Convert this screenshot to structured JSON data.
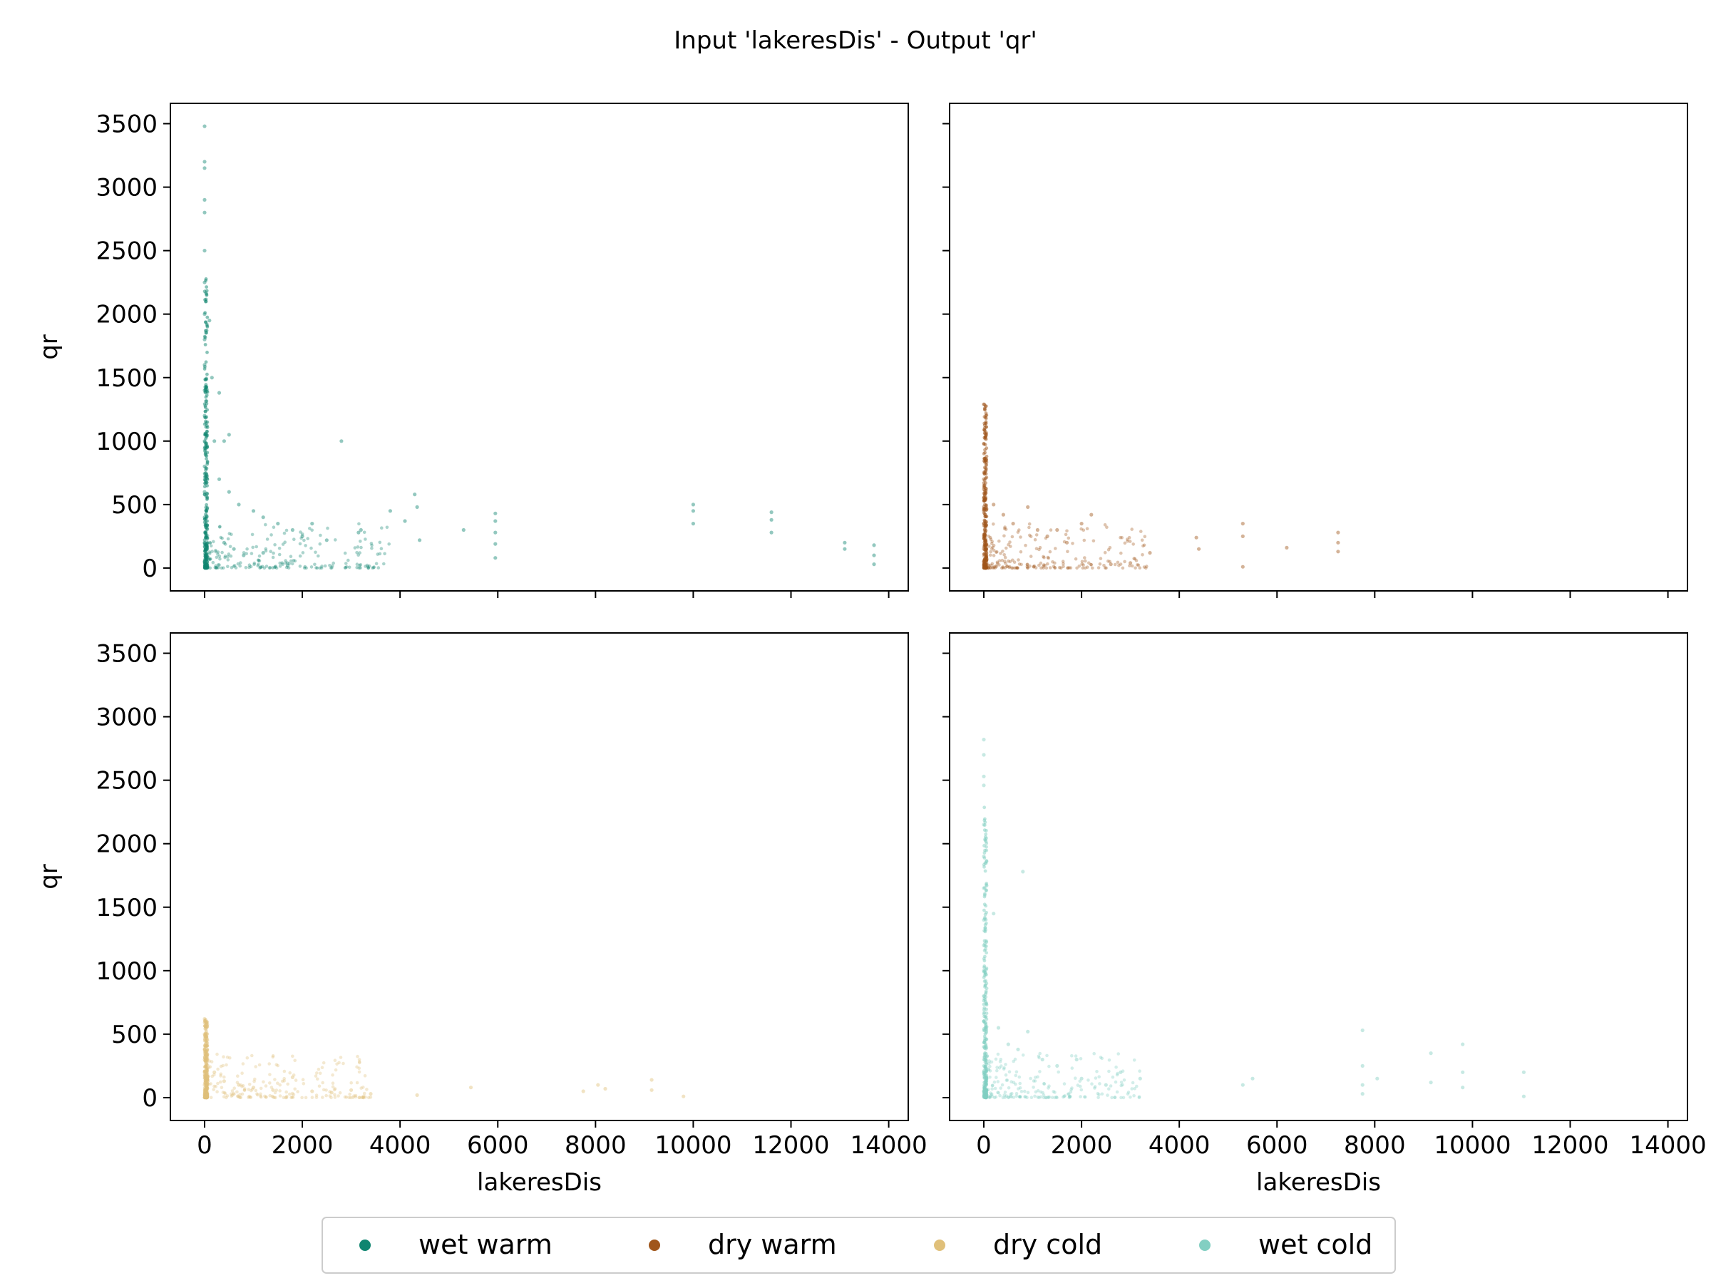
{
  "figure": {
    "title": "Input 'lakeresDis' - Output 'qr'"
  },
  "legend": {
    "items": [
      {
        "label": "wet warm",
        "color": "#0f8570"
      },
      {
        "label": "dry warm",
        "color": "#a0561b"
      },
      {
        "label": "dry cold",
        "color": "#e0c07a"
      },
      {
        "label": "wet cold",
        "color": "#82cfc2"
      }
    ]
  },
  "chart_data": [
    {
      "type": "scatter",
      "panel": "top-left",
      "series": [
        {
          "name": "wet warm",
          "color": "#0f8570"
        }
      ],
      "xlabel": "",
      "ylabel": "qr",
      "xlim": [
        -700,
        14400
      ],
      "ylim": [
        -180,
        3660
      ],
      "xticks": [
        0,
        2000,
        4000,
        6000,
        8000,
        10000,
        12000,
        14000
      ],
      "yticks": [
        0,
        500,
        1000,
        1500,
        2000,
        2500,
        3000,
        3500
      ],
      "show_xtick_labels": false,
      "show_ytick_labels": true,
      "points": [
        [
          0,
          3480
        ],
        [
          0,
          3200
        ],
        [
          0,
          3150
        ],
        [
          0,
          2900
        ],
        [
          0,
          2800
        ],
        [
          0,
          2500
        ],
        [
          0,
          2250
        ],
        [
          0,
          2000
        ],
        [
          0,
          1800
        ],
        [
          0,
          1600
        ],
        [
          0,
          1400
        ],
        [
          0,
          1200
        ],
        [
          0,
          1000
        ],
        [
          0,
          800
        ],
        [
          0,
          600
        ],
        [
          0,
          400
        ],
        [
          0,
          200
        ],
        [
          0,
          50
        ],
        [
          100,
          1950
        ],
        [
          150,
          1500
        ],
        [
          200,
          1000
        ],
        [
          300,
          1380
        ],
        [
          400,
          1000
        ],
        [
          500,
          1050
        ],
        [
          300,
          700
        ],
        [
          500,
          600
        ],
        [
          700,
          500
        ],
        [
          1000,
          450
        ],
        [
          1200,
          400
        ],
        [
          1500,
          350
        ],
        [
          1800,
          300
        ],
        [
          2000,
          250
        ],
        [
          2200,
          350
        ],
        [
          400,
          200
        ],
        [
          600,
          150
        ],
        [
          800,
          100
        ],
        [
          1200,
          120
        ],
        [
          1700,
          20
        ],
        [
          2500,
          220
        ],
        [
          2800,
          1000
        ],
        [
          3200,
          300
        ],
        [
          3150,
          280
        ],
        [
          3800,
          450
        ],
        [
          4100,
          370
        ],
        [
          4300,
          580
        ],
        [
          4350,
          480
        ],
        [
          4400,
          220
        ],
        [
          5300,
          300
        ],
        [
          5950,
          430
        ],
        [
          5950,
          370
        ],
        [
          5950,
          280
        ],
        [
          5950,
          190
        ],
        [
          5950,
          80
        ],
        [
          10000,
          500
        ],
        [
          10000,
          450
        ],
        [
          10000,
          350
        ],
        [
          11600,
          440
        ],
        [
          11600,
          380
        ],
        [
          11600,
          280
        ],
        [
          13100,
          200
        ],
        [
          13100,
          150
        ],
        [
          13700,
          180
        ],
        [
          13700,
          100
        ],
        [
          13700,
          30
        ]
      ]
    },
    {
      "type": "scatter",
      "panel": "top-right",
      "series": [
        {
          "name": "dry warm",
          "color": "#a0561b"
        }
      ],
      "xlabel": "",
      "ylabel": "",
      "xlim": [
        -700,
        14400
      ],
      "ylim": [
        -180,
        3660
      ],
      "xticks": [
        0,
        2000,
        4000,
        6000,
        8000,
        10000,
        12000,
        14000
      ],
      "yticks": [
        0,
        500,
        1000,
        1500,
        2000,
        2500,
        3000,
        3500
      ],
      "show_xtick_labels": false,
      "show_ytick_labels": false,
      "points": [
        [
          0,
          1290
        ],
        [
          0,
          700
        ],
        [
          0,
          620
        ],
        [
          0,
          550
        ],
        [
          0,
          450
        ],
        [
          0,
          350
        ],
        [
          0,
          250
        ],
        [
          0,
          150
        ],
        [
          0,
          50
        ],
        [
          200,
          500
        ],
        [
          400,
          420
        ],
        [
          600,
          350
        ],
        [
          900,
          480
        ],
        [
          1100,
          300
        ],
        [
          1300,
          250
        ],
        [
          1500,
          300
        ],
        [
          1700,
          200
        ],
        [
          2000,
          350
        ],
        [
          2200,
          420
        ],
        [
          2600,
          30
        ],
        [
          3000,
          40
        ],
        [
          3400,
          120
        ],
        [
          4350,
          240
        ],
        [
          4400,
          150
        ],
        [
          5300,
          350
        ],
        [
          5300,
          250
        ],
        [
          5300,
          10
        ],
        [
          6200,
          160
        ],
        [
          7250,
          280
        ],
        [
          7250,
          200
        ],
        [
          7250,
          130
        ]
      ]
    },
    {
      "type": "scatter",
      "panel": "bottom-left",
      "series": [
        {
          "name": "dry cold",
          "color": "#e0c07a"
        }
      ],
      "xlabel": "lakeresDis",
      "ylabel": "qr",
      "xlim": [
        -700,
        14400
      ],
      "ylim": [
        -180,
        3660
      ],
      "xticks": [
        0,
        2000,
        4000,
        6000,
        8000,
        10000,
        12000,
        14000
      ],
      "yticks": [
        0,
        500,
        1000,
        1500,
        2000,
        2500,
        3000,
        3500
      ],
      "show_xtick_labels": true,
      "show_ytick_labels": true,
      "points": [
        [
          0,
          620
        ],
        [
          0,
          500
        ],
        [
          0,
          380
        ],
        [
          0,
          300
        ],
        [
          0,
          200
        ],
        [
          0,
          100
        ],
        [
          0,
          20
        ],
        [
          200,
          200
        ],
        [
          400,
          130
        ],
        [
          700,
          100
        ],
        [
          1000,
          80
        ],
        [
          1400,
          60
        ],
        [
          1800,
          160
        ],
        [
          2200,
          50
        ],
        [
          2600,
          40
        ],
        [
          3000,
          60
        ],
        [
          3400,
          30
        ],
        [
          4350,
          20
        ],
        [
          5450,
          80
        ],
        [
          7750,
          50
        ],
        [
          8050,
          100
        ],
        [
          8200,
          70
        ],
        [
          9150,
          140
        ],
        [
          9150,
          60
        ],
        [
          9800,
          10
        ]
      ]
    },
    {
      "type": "scatter",
      "panel": "bottom-right",
      "series": [
        {
          "name": "wet cold",
          "color": "#82cfc2"
        }
      ],
      "xlabel": "lakeresDis",
      "ylabel": "",
      "xlim": [
        -700,
        14400
      ],
      "ylim": [
        -180,
        3660
      ],
      "xticks": [
        0,
        2000,
        4000,
        6000,
        8000,
        10000,
        12000,
        14000
      ],
      "yticks": [
        0,
        500,
        1000,
        1500,
        2000,
        2500,
        3000,
        3500
      ],
      "show_xtick_labels": true,
      "show_ytick_labels": false,
      "points": [
        [
          0,
          2820
        ],
        [
          0,
          2700
        ],
        [
          0,
          2530
        ],
        [
          0,
          2460
        ],
        [
          0,
          2150
        ],
        [
          0,
          1900
        ],
        [
          0,
          1650
        ],
        [
          0,
          1400
        ],
        [
          0,
          1200
        ],
        [
          0,
          1000
        ],
        [
          0,
          800
        ],
        [
          0,
          600
        ],
        [
          0,
          400
        ],
        [
          0,
          200
        ],
        [
          0,
          50
        ],
        [
          200,
          1450
        ],
        [
          800,
          1780
        ],
        [
          300,
          550
        ],
        [
          500,
          420
        ],
        [
          700,
          380
        ],
        [
          900,
          520
        ],
        [
          1200,
          300
        ],
        [
          1500,
          250
        ],
        [
          1900,
          300
        ],
        [
          2000,
          150
        ],
        [
          2500,
          100
        ],
        [
          2800,
          200
        ],
        [
          3200,
          150
        ],
        [
          5300,
          100
        ],
        [
          5500,
          150
        ],
        [
          7750,
          530
        ],
        [
          7750,
          250
        ],
        [
          7750,
          100
        ],
        [
          7750,
          30
        ],
        [
          8050,
          150
        ],
        [
          9150,
          350
        ],
        [
          9150,
          120
        ],
        [
          9800,
          420
        ],
        [
          9800,
          200
        ],
        [
          9800,
          80
        ],
        [
          11050,
          200
        ],
        [
          11050,
          10
        ]
      ]
    }
  ]
}
